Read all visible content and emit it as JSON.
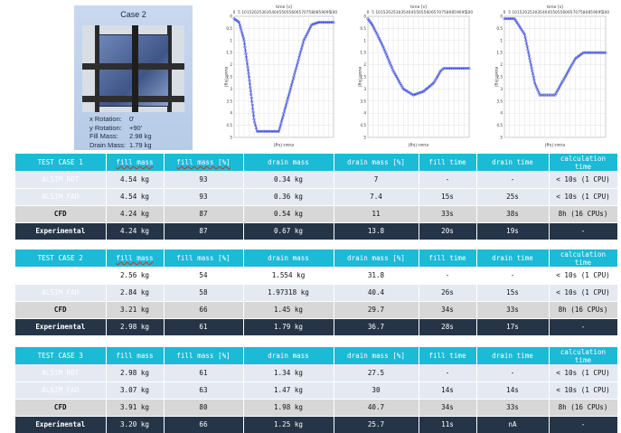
{
  "case_card": {
    "title": "Case 2",
    "rows": [
      {
        "label": "x Rotation:",
        "value": "0'"
      },
      {
        "label": "y Rotation:",
        "value": "+90'"
      },
      {
        "label": "Fill Mass:",
        "value": "2.98 kg"
      },
      {
        "label": "Drain Mass:",
        "value": "1.79 kg"
      }
    ]
  },
  "plots": [
    {
      "top_label": "time [s]",
      "side_label": "mass [kg]",
      "bottom_label": "mass [kg]",
      "x_ticks": [
        "0",
        "5",
        "10",
        "15",
        "20",
        "25",
        "30",
        "35",
        "40",
        "45",
        "50",
        "55",
        "60",
        "65",
        "70",
        "75",
        "80",
        "85",
        "90",
        "95",
        "100"
      ],
      "y_ticks": [
        "0",
        "0.5",
        "1",
        "1.5",
        "2",
        "2.5",
        "3",
        "3.5",
        "4",
        "4.5",
        "5"
      ]
    },
    {
      "top_label": "time [s]",
      "side_label": "mass [kg]",
      "bottom_label": "mass [kg]",
      "x_ticks": [
        "0",
        "5",
        "10",
        "15",
        "20",
        "25",
        "30",
        "35",
        "40",
        "45",
        "50",
        "55",
        "60",
        "65",
        "70",
        "75",
        "80",
        "85",
        "90",
        "95",
        "100"
      ],
      "y_ticks": [
        "0",
        "0.5",
        "1",
        "1.5",
        "2",
        "2.5",
        "3",
        "3.5",
        "4",
        "4.5",
        "5"
      ]
    },
    {
      "top_label": "time [s]",
      "side_label": "mass [kg]",
      "bottom_label": "mass [kg]",
      "x_ticks": [
        "0",
        "5",
        "10",
        "15",
        "20",
        "25",
        "30",
        "35",
        "40",
        "45",
        "50",
        "55",
        "60",
        "65",
        "70",
        "75",
        "80",
        "85",
        "90",
        "95",
        "100"
      ],
      "y_ticks": [
        "0",
        "0.5",
        "1",
        "1.5",
        "2",
        "2.5",
        "3",
        "3.5",
        "4",
        "4.5",
        "5"
      ]
    }
  ],
  "columns": [
    "fill mass",
    "fill mass [%]",
    "drain mass",
    "drain mass [%]",
    "fill time",
    "drain time",
    "calculation time"
  ],
  "tables": [
    {
      "title": "TEST CASE 1",
      "rows": [
        {
          "name": "ALSIM_ROT",
          "cells": [
            "4.54 kg",
            "93",
            "0.34 kg",
            "7",
            "-",
            "-",
            "< 10s (1 CPU)"
          ]
        },
        {
          "name": "ALSIM_FAD",
          "cells": [
            "4.54 kg",
            "93",
            "0.36 kg",
            "7.4",
            "15s",
            "25s",
            "< 10s (1 CPU)"
          ]
        },
        {
          "name": "CFD",
          "cells": [
            "4.24 kg",
            "87",
            "0.54 kg",
            "11",
            "33s",
            "38s",
            "8h (16 CPUs)"
          ]
        },
        {
          "name": "Experimental",
          "cells": [
            "4.24 kg",
            "87",
            "0.67 kg",
            "13.8",
            "20s",
            "19s",
            "-"
          ]
        }
      ]
    },
    {
      "title": "TEST CASE 2",
      "rows": [
        {
          "name": "ALSIM_ROT",
          "cells": [
            "2.56 kg",
            "54",
            "1.554 kg",
            "31.8",
            "-",
            "-",
            "< 10s (1 CPU)"
          ]
        },
        {
          "name": "ALSIM_FAD",
          "cells": [
            "2.84 kg",
            "58",
            "1.97318 kg",
            "40.4",
            "26s",
            "15s",
            "< 10s (1 CPU)"
          ]
        },
        {
          "name": "CFD",
          "cells": [
            "3.21 kg",
            "66",
            "1.45 kg",
            "29.7",
            "34s",
            "33s",
            "8h (16 CPUs)"
          ]
        },
        {
          "name": "Experimental",
          "cells": [
            "2.98 kg",
            "61",
            "1.79 kg",
            "36.7",
            "28s",
            "17s",
            "-"
          ]
        }
      ]
    },
    {
      "title": "TEST CASE 3",
      "rows": [
        {
          "name": "ALSIM_ROT",
          "cells": [
            "2.98 kg",
            "61",
            "1.34 kg",
            "27.5",
            "-",
            "-",
            "< 10s (1 CPU)"
          ]
        },
        {
          "name": "ALSIM_FAD",
          "cells": [
            "3.07 kg",
            "63",
            "1.47 kg",
            "30",
            "14s",
            "14s",
            "< 10s (1 CPU)"
          ]
        },
        {
          "name": "CFD",
          "cells": [
            "3.91 kg",
            "80",
            "1.98 kg",
            "40.7",
            "34s",
            "33s",
            "8h (16 CPUs)"
          ]
        },
        {
          "name": "Experimental",
          "cells": [
            "3.20 kg",
            "66",
            "1.25 kg",
            "25.7",
            "11s",
            "nA",
            "-"
          ]
        }
      ]
    }
  ],
  "colors": {
    "header": "#1bbad6",
    "experimental": "#253447",
    "cfd": "#d7d7d7",
    "alt": "#e4e9f2",
    "curve": "#3344dd"
  }
}
